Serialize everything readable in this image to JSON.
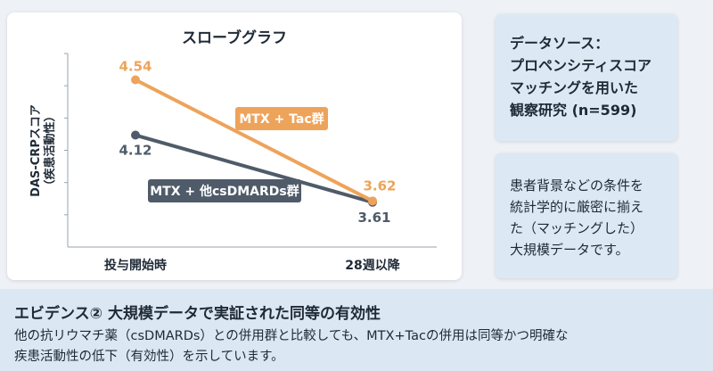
{
  "chart_data": {
    "type": "line",
    "title": "スローブグラフ",
    "ylabel": "DAS-CRPスコア（疾患活動性）",
    "ylabel_lines": [
      "DAS-CRPスコア",
      "（疾患活動性）"
    ],
    "xlabel": "",
    "categories": [
      "投与開始時",
      "28週以降"
    ],
    "ylim": [
      3.27,
      4.74
    ],
    "grid": false,
    "series": [
      {
        "name": "MTX + Tac群",
        "values": [
          4.54,
          3.62
        ],
        "labels": [
          "4.54",
          "3.62"
        ],
        "color": "#eea35a"
      },
      {
        "name": "MTX + 他csDMARDs群",
        "values": [
          4.12,
          3.61
        ],
        "labels": [
          "4.12",
          "3.61"
        ],
        "color": "#4f5b69"
      }
    ]
  },
  "side": {
    "source_lines": [
      "データソース：",
      "プロペンシティスコア",
      "マッチングを用いた",
      "観察研究 (n=599)"
    ],
    "note_lines": [
      "患者背景などの条件を",
      "統計学的に厳密に揃え",
      "た（マッチングした）",
      "大規模データです。"
    ]
  },
  "bottom": {
    "title": "エビデンス② 大規模データで実証された同等の有効性",
    "lines": [
      "他の抗リウマチ薬（csDMARDs）との併用群と比較しても、MTX+Tacの併用は同等かつ明確な",
      "疾患活動性の低下（有効性）を示しています。"
    ]
  }
}
